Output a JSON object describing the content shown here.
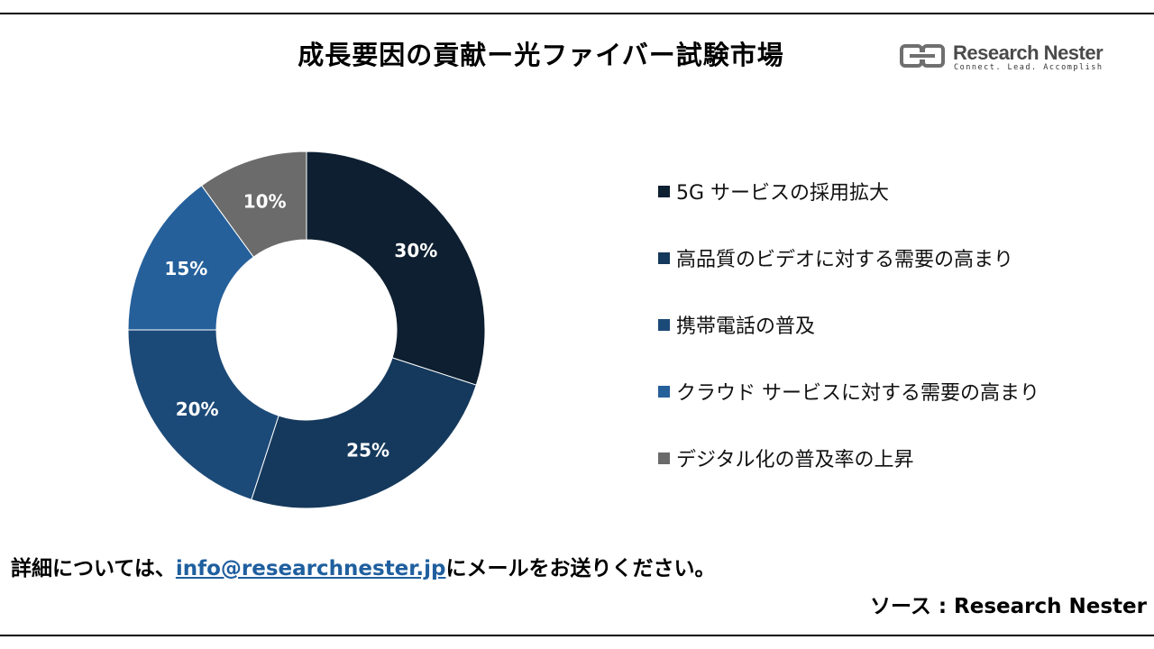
{
  "header": {
    "title": "成長要因の貢献ー光ファイバー試験市場"
  },
  "logo": {
    "name": "Research Nester",
    "tagline": "Connect. Lead. Accomplish",
    "icon": "research-nester-logo-icon"
  },
  "chart_data": {
    "type": "pie",
    "subtype": "donut",
    "title": "成長要因の貢献ー光ファイバー試験市場",
    "legend_position": "right",
    "slices": [
      {
        "label": "5G サービスの採用拡大",
        "value": 30,
        "display": "30%",
        "color": "#0d1f31"
      },
      {
        "label": "高品質のビデオに対する需要の高まり",
        "value": 25,
        "display": "25%",
        "color": "#15395c"
      },
      {
        "label": "携帯電話の普及",
        "value": 20,
        "display": "20%",
        "color": "#1c4a78"
      },
      {
        "label": "クラウド サービスに対する需要の高まり",
        "value": 15,
        "display": "15%",
        "color": "#25609b"
      },
      {
        "label": "デジタル化の普及率の上昇",
        "value": 10,
        "display": "10%",
        "color": "#6b6b6b"
      }
    ]
  },
  "footer": {
    "prefix": "詳細については、",
    "email": "info@researchnester.jp",
    "suffix": "にメールをお送りください。",
    "source": "ソース  : Research Nester"
  }
}
